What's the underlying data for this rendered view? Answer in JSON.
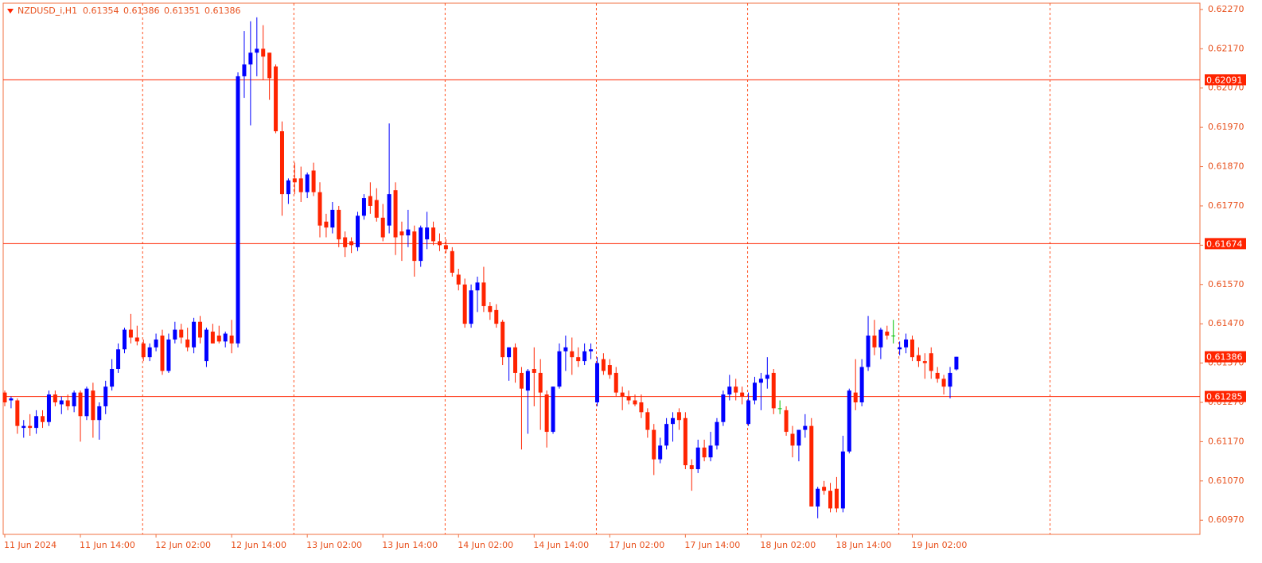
{
  "chart_data": {
    "type": "candlestick",
    "symbol": "NZDUSD_i,H1",
    "up_color": "#0000ff",
    "down_color": "#ff2400",
    "doji_color": "#00c000",
    "level_color": "#ff2400",
    "ylim": [
      0.60934,
      0.62286
    ],
    "yticks": [
      {
        "value": 0.6227,
        "label": "0.62270"
      },
      {
        "value": 0.6217,
        "label": "0.62170"
      },
      {
        "value": 0.6207,
        "label": "0.62070"
      },
      {
        "value": 0.6197,
        "label": "0.61970"
      },
      {
        "value": 0.6187,
        "label": "0.61870"
      },
      {
        "value": 0.6177,
        "label": "0.61770"
      },
      {
        "value": 0.6167,
        "label": "0.61670"
      },
      {
        "value": 0.6157,
        "label": "0.61570"
      },
      {
        "value": 0.6147,
        "label": "0.61470"
      },
      {
        "value": 0.6137,
        "label": "0.61370"
      },
      {
        "value": 0.6127,
        "label": "0.61270"
      },
      {
        "value": 0.6117,
        "label": "0.61170"
      },
      {
        "value": 0.6107,
        "label": "0.61070"
      },
      {
        "value": 0.6097,
        "label": "0.60970"
      }
    ],
    "levels": [
      0.62091,
      0.61674,
      0.61285
    ],
    "time_labels": [
      "11 Jun 2024",
      "11 Jun 14:00",
      "12 Jun 02:00",
      "12 Jun 14:00",
      "13 Jun 02:00",
      "13 Jun 14:00",
      "14 Jun 02:00",
      "14 Jun 14:00",
      "17 Jun 02:00",
      "17 Jun 14:00",
      "18 Jun 02:00",
      "18 Jun 14:00",
      "19 Jun 02:00"
    ],
    "candles": [
      [
        0.61295,
        0.613,
        0.6126,
        0.6127
      ],
      [
        0.61275,
        0.61285,
        0.61255,
        0.6128
      ],
      [
        0.61275,
        0.6128,
        0.6119,
        0.6121
      ],
      [
        0.61205,
        0.61225,
        0.6118,
        0.6121
      ],
      [
        0.6121,
        0.6124,
        0.61185,
        0.61205
      ],
      [
        0.61205,
        0.6125,
        0.6119,
        0.61235
      ],
      [
        0.61235,
        0.6125,
        0.61205,
        0.6122
      ],
      [
        0.6122,
        0.613,
        0.6121,
        0.6129
      ],
      [
        0.6129,
        0.613,
        0.6126,
        0.6127
      ],
      [
        0.61265,
        0.61285,
        0.6124,
        0.61275
      ],
      [
        0.61275,
        0.6129,
        0.6125,
        0.6126
      ],
      [
        0.6126,
        0.613,
        0.61245,
        0.61295
      ],
      [
        0.61295,
        0.613,
        0.6117,
        0.61235
      ],
      [
        0.61235,
        0.6131,
        0.61225,
        0.61305
      ],
      [
        0.613,
        0.6132,
        0.6118,
        0.61225
      ],
      [
        0.61225,
        0.6127,
        0.61175,
        0.6126
      ],
      [
        0.6126,
        0.61325,
        0.6124,
        0.6131
      ],
      [
        0.6131,
        0.6138,
        0.613,
        0.61355
      ],
      [
        0.61355,
        0.6142,
        0.61345,
        0.61405
      ],
      [
        0.61405,
        0.6146,
        0.61395,
        0.61455
      ],
      [
        0.61455,
        0.61495,
        0.6142,
        0.61435
      ],
      [
        0.61435,
        0.61465,
        0.61415,
        0.61425
      ],
      [
        0.6142,
        0.6143,
        0.61375,
        0.61385
      ],
      [
        0.61385,
        0.6142,
        0.61375,
        0.6141
      ],
      [
        0.6141,
        0.61445,
        0.614,
        0.6143
      ],
      [
        0.6144,
        0.61455,
        0.6134,
        0.6135
      ],
      [
        0.6135,
        0.61445,
        0.61345,
        0.6143
      ],
      [
        0.6143,
        0.61475,
        0.6142,
        0.61455
      ],
      [
        0.61455,
        0.6147,
        0.6142,
        0.61435
      ],
      [
        0.6143,
        0.6146,
        0.614,
        0.6141
      ],
      [
        0.6141,
        0.61485,
        0.61395,
        0.61475
      ],
      [
        0.61475,
        0.6149,
        0.6142,
        0.61435
      ],
      [
        0.61375,
        0.6146,
        0.6136,
        0.61455
      ],
      [
        0.6145,
        0.6147,
        0.6142,
        0.6142
      ],
      [
        0.6144,
        0.61465,
        0.6142,
        0.61425
      ],
      [
        0.61425,
        0.6145,
        0.6141,
        0.61445
      ],
      [
        0.6144,
        0.6148,
        0.61395,
        0.6142
      ],
      [
        0.6142,
        0.6211,
        0.6141,
        0.621
      ],
      [
        0.621,
        0.62215,
        0.62045,
        0.6213
      ],
      [
        0.6213,
        0.6224,
        0.61975,
        0.6216
      ],
      [
        0.6216,
        0.6225,
        0.621,
        0.6217
      ],
      [
        0.6217,
        0.6223,
        0.6209,
        0.6215
      ],
      [
        0.6216,
        0.6216,
        0.6204,
        0.62095
      ],
      [
        0.62125,
        0.6213,
        0.61955,
        0.6196
      ],
      [
        0.6196,
        0.61985,
        0.61745,
        0.618
      ],
      [
        0.618,
        0.6184,
        0.61775,
        0.61835
      ],
      [
        0.6184,
        0.6188,
        0.618,
        0.6183
      ],
      [
        0.6184,
        0.6187,
        0.6178,
        0.61805
      ],
      [
        0.61805,
        0.61855,
        0.6179,
        0.6185
      ],
      [
        0.6186,
        0.6188,
        0.61795,
        0.61805
      ],
      [
        0.61805,
        0.6183,
        0.6169,
        0.6172
      ],
      [
        0.6173,
        0.6175,
        0.6169,
        0.61715
      ],
      [
        0.61715,
        0.6178,
        0.617,
        0.6176
      ],
      [
        0.6176,
        0.6177,
        0.61665,
        0.61685
      ],
      [
        0.6169,
        0.61705,
        0.6164,
        0.61665
      ],
      [
        0.6168,
        0.6169,
        0.6165,
        0.6167
      ],
      [
        0.61665,
        0.61755,
        0.61655,
        0.61745
      ],
      [
        0.61745,
        0.618,
        0.61735,
        0.6179
      ],
      [
        0.61795,
        0.6183,
        0.6175,
        0.6177
      ],
      [
        0.61785,
        0.61815,
        0.6173,
        0.6174
      ],
      [
        0.6174,
        0.61775,
        0.6168,
        0.6169
      ],
      [
        0.6172,
        0.6198,
        0.617,
        0.618
      ],
      [
        0.6181,
        0.6183,
        0.61645,
        0.6169
      ],
      [
        0.61705,
        0.6173,
        0.6163,
        0.61695
      ],
      [
        0.61695,
        0.6176,
        0.61665,
        0.6171
      ],
      [
        0.61705,
        0.6172,
        0.6159,
        0.6163
      ],
      [
        0.6163,
        0.6172,
        0.61615,
        0.61715
      ],
      [
        0.61685,
        0.61755,
        0.6166,
        0.61715
      ],
      [
        0.61715,
        0.6173,
        0.6167,
        0.6168
      ],
      [
        0.6168,
        0.617,
        0.61655,
        0.6167
      ],
      [
        0.6167,
        0.61685,
        0.6165,
        0.6166
      ],
      [
        0.61655,
        0.61665,
        0.6159,
        0.616
      ],
      [
        0.61595,
        0.6161,
        0.61555,
        0.6157
      ],
      [
        0.6157,
        0.61585,
        0.6146,
        0.6147
      ],
      [
        0.6147,
        0.6157,
        0.6146,
        0.61555
      ],
      [
        0.61555,
        0.6159,
        0.615,
        0.61575
      ],
      [
        0.61575,
        0.61615,
        0.615,
        0.61515
      ],
      [
        0.61515,
        0.61525,
        0.6148,
        0.615
      ],
      [
        0.61505,
        0.6152,
        0.6146,
        0.6147
      ],
      [
        0.61475,
        0.6148,
        0.61365,
        0.61385
      ],
      [
        0.61385,
        0.6141,
        0.61325,
        0.6141
      ],
      [
        0.6141,
        0.6142,
        0.6132,
        0.61345
      ],
      [
        0.61345,
        0.6136,
        0.6115,
        0.61305
      ],
      [
        0.613,
        0.61355,
        0.6119,
        0.6135
      ],
      [
        0.61355,
        0.6141,
        0.6126,
        0.61345
      ],
      [
        0.61345,
        0.6138,
        0.612,
        0.61295
      ],
      [
        0.6129,
        0.613,
        0.61155,
        0.61195
      ],
      [
        0.61195,
        0.6131,
        0.6119,
        0.6131
      ],
      [
        0.6131,
        0.6142,
        0.61305,
        0.614
      ],
      [
        0.614,
        0.6144,
        0.6135,
        0.6141
      ],
      [
        0.614,
        0.61435,
        0.6134,
        0.61385
      ],
      [
        0.61385,
        0.6141,
        0.6136,
        0.61375
      ],
      [
        0.61375,
        0.6142,
        0.61365,
        0.614
      ],
      [
        0.614,
        0.6142,
        0.6138,
        0.61405
      ],
      [
        0.6127,
        0.61385,
        0.6126,
        0.6137
      ],
      [
        0.6138,
        0.61395,
        0.6134,
        0.6135
      ],
      [
        0.61365,
        0.6138,
        0.6133,
        0.6134
      ],
      [
        0.61345,
        0.6136,
        0.61285,
        0.61295
      ],
      [
        0.61295,
        0.6131,
        0.6125,
        0.61285
      ],
      [
        0.61285,
        0.613,
        0.61265,
        0.61275
      ],
      [
        0.61275,
        0.6129,
        0.6126,
        0.61265
      ],
      [
        0.6127,
        0.6129,
        0.6123,
        0.61245
      ],
      [
        0.61245,
        0.61255,
        0.6118,
        0.612
      ],
      [
        0.612,
        0.61215,
        0.61085,
        0.61125
      ],
      [
        0.61125,
        0.6118,
        0.61115,
        0.6116
      ],
      [
        0.6116,
        0.6123,
        0.6115,
        0.61215
      ],
      [
        0.61215,
        0.61245,
        0.6117,
        0.6123
      ],
      [
        0.61245,
        0.61255,
        0.612,
        0.61225
      ],
      [
        0.6123,
        0.61245,
        0.611,
        0.6111
      ],
      [
        0.6111,
        0.61125,
        0.61045,
        0.611
      ],
      [
        0.611,
        0.61175,
        0.6109,
        0.61155
      ],
      [
        0.61155,
        0.61175,
        0.6112,
        0.6113
      ],
      [
        0.6113,
        0.61195,
        0.6112,
        0.6116
      ],
      [
        0.6116,
        0.6123,
        0.6115,
        0.6122
      ],
      [
        0.6122,
        0.613,
        0.6121,
        0.6129
      ],
      [
        0.6129,
        0.6134,
        0.61275,
        0.6131
      ],
      [
        0.6131,
        0.6133,
        0.61275,
        0.61295
      ],
      [
        0.61295,
        0.6131,
        0.61265,
        0.61285
      ],
      [
        0.61215,
        0.61295,
        0.6121,
        0.61275
      ],
      [
        0.61275,
        0.61335,
        0.61265,
        0.6132
      ],
      [
        0.6132,
        0.61345,
        0.6125,
        0.6133
      ],
      [
        0.6133,
        0.61385,
        0.61305,
        0.6134
      ],
      [
        0.61345,
        0.61355,
        0.6124,
        0.61255
      ],
      [
        0.61255,
        0.61275,
        0.6124,
        0.61255
      ],
      [
        0.6125,
        0.6126,
        0.61185,
        0.61195
      ],
      [
        0.6119,
        0.6121,
        0.6113,
        0.6116
      ],
      [
        0.6116,
        0.612,
        0.6112,
        0.612
      ],
      [
        0.612,
        0.6124,
        0.6118,
        0.6121
      ],
      [
        0.6121,
        0.6123,
        0.61005,
        0.61005
      ],
      [
        0.61005,
        0.61055,
        0.60975,
        0.6105
      ],
      [
        0.61055,
        0.6107,
        0.61035,
        0.61045
      ],
      [
        0.61045,
        0.61065,
        0.6099,
        0.61
      ],
      [
        0.6105,
        0.6108,
        0.6099,
        0.61
      ],
      [
        0.61,
        0.61185,
        0.6099,
        0.61145
      ],
      [
        0.61145,
        0.61305,
        0.6114,
        0.613
      ],
      [
        0.61295,
        0.6138,
        0.6125,
        0.6127
      ],
      [
        0.6127,
        0.6138,
        0.6126,
        0.6136
      ],
      [
        0.6136,
        0.6149,
        0.6135,
        0.6144
      ],
      [
        0.6144,
        0.6148,
        0.6139,
        0.6141
      ],
      [
        0.6141,
        0.6146,
        0.6138,
        0.61455
      ],
      [
        0.6145,
        0.61465,
        0.6143,
        0.6144
      ],
      [
        0.6144,
        0.6148,
        0.6142,
        0.6144
      ],
      [
        0.61405,
        0.61425,
        0.6139,
        0.6141
      ],
      [
        0.6141,
        0.61445,
        0.61395,
        0.6143
      ],
      [
        0.6143,
        0.6144,
        0.61375,
        0.61385
      ],
      [
        0.6139,
        0.6141,
        0.6136,
        0.61375
      ],
      [
        0.61375,
        0.61395,
        0.6133,
        0.6137
      ],
      [
        0.61395,
        0.6141,
        0.6133,
        0.6135
      ],
      [
        0.61345,
        0.6136,
        0.6132,
        0.6133
      ],
      [
        0.6133,
        0.6134,
        0.6129,
        0.6131
      ],
      [
        0.6131,
        0.6136,
        0.6128,
        0.61345
      ],
      [
        0.61354,
        0.61386,
        0.61351,
        0.61386
      ]
    ]
  }
}
